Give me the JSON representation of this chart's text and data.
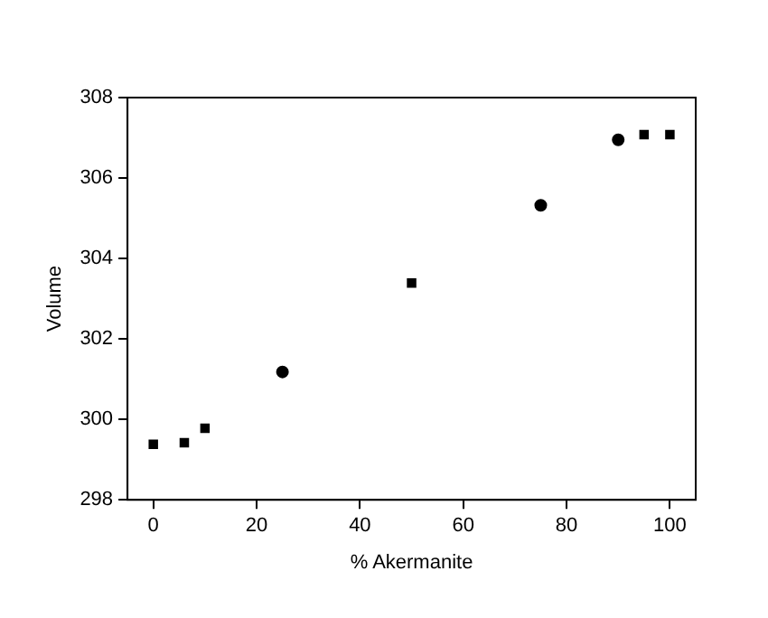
{
  "chart_data": {
    "type": "scatter",
    "xlabel": "% Akermanite",
    "ylabel": "Volume",
    "xlim": [
      -5,
      105
    ],
    "xticks": [
      0,
      20,
      40,
      60,
      80,
      100
    ],
    "ylim": [
      298,
      308
    ],
    "yticks": [
      298,
      300,
      302,
      304,
      306,
      308
    ],
    "grid": false,
    "legend": false,
    "series": [
      {
        "color": "#000000",
        "marker": "square",
        "x": [
          0,
          6,
          10,
          50,
          95,
          100
        ],
        "values": [
          299.38,
          299.42,
          299.78,
          303.39,
          307.08,
          307.08
        ],
        "errors": [
          0.1,
          0.1,
          0.1,
          0.1,
          0.1,
          0.1
        ]
      },
      {
        "color": "#000000",
        "marker": "circle",
        "x": [
          25,
          75,
          90
        ],
        "values": [
          301.18,
          305.32,
          306.95
        ],
        "errors": [
          null,
          null,
          0.1
        ]
      }
    ]
  }
}
